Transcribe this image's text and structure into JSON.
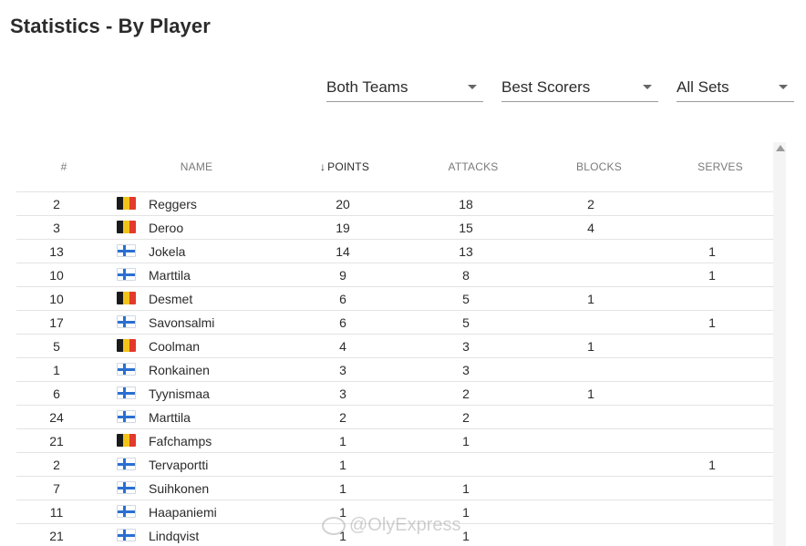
{
  "page": {
    "title": "Statistics - By Player"
  },
  "filters": {
    "teams": "Both Teams",
    "type": "Best Scorers",
    "sets": "All Sets"
  },
  "table": {
    "columns": {
      "num": "#",
      "name": "Name",
      "points": "POINTS",
      "attacks": "ATTACKS",
      "blocks": "BLOCKS",
      "serves": "SERVES"
    },
    "sort_indicator": "↓",
    "rows": [
      {
        "num": "2",
        "flag": "be",
        "name": "Reggers",
        "points": "20",
        "attacks": "18",
        "blocks": "2",
        "serves": ""
      },
      {
        "num": "3",
        "flag": "be",
        "name": "Deroo",
        "points": "19",
        "attacks": "15",
        "blocks": "4",
        "serves": ""
      },
      {
        "num": "13",
        "flag": "fi",
        "name": "Jokela",
        "points": "14",
        "attacks": "13",
        "blocks": "",
        "serves": "1"
      },
      {
        "num": "10",
        "flag": "fi",
        "name": "Marttila",
        "points": "9",
        "attacks": "8",
        "blocks": "",
        "serves": "1"
      },
      {
        "num": "10",
        "flag": "be",
        "name": "Desmet",
        "points": "6",
        "attacks": "5",
        "blocks": "1",
        "serves": ""
      },
      {
        "num": "17",
        "flag": "fi",
        "name": "Savonsalmi",
        "points": "6",
        "attacks": "5",
        "blocks": "",
        "serves": "1"
      },
      {
        "num": "5",
        "flag": "be",
        "name": "Coolman",
        "points": "4",
        "attacks": "3",
        "blocks": "1",
        "serves": ""
      },
      {
        "num": "1",
        "flag": "fi",
        "name": "Ronkainen",
        "points": "3",
        "attacks": "3",
        "blocks": "",
        "serves": ""
      },
      {
        "num": "6",
        "flag": "fi",
        "name": "Tyynismaa",
        "points": "3",
        "attacks": "2",
        "blocks": "1",
        "serves": ""
      },
      {
        "num": "24",
        "flag": "fi",
        "name": "Marttila",
        "points": "2",
        "attacks": "2",
        "blocks": "",
        "serves": ""
      },
      {
        "num": "21",
        "flag": "be",
        "name": "Fafchamps",
        "points": "1",
        "attacks": "1",
        "blocks": "",
        "serves": ""
      },
      {
        "num": "2",
        "flag": "fi",
        "name": "Tervaportti",
        "points": "1",
        "attacks": "",
        "blocks": "",
        "serves": "1"
      },
      {
        "num": "7",
        "flag": "fi",
        "name": "Suihkonen",
        "points": "1",
        "attacks": "1",
        "blocks": "",
        "serves": ""
      },
      {
        "num": "11",
        "flag": "fi",
        "name": "Haapaniemi",
        "points": "1",
        "attacks": "1",
        "blocks": "",
        "serves": ""
      },
      {
        "num": "21",
        "flag": "fi",
        "name": "Lindqvist",
        "points": "1",
        "attacks": "1",
        "blocks": "",
        "serves": ""
      }
    ]
  },
  "watermark": {
    "text": "@OlyExpress"
  },
  "icons": {
    "dropdown": "chevron-down-icon",
    "sort": "arrow-down-icon",
    "belgium": "belgium-flag-icon",
    "finland": "finland-flag-icon",
    "scroll": "scroll-up-icon"
  },
  "colors": {
    "belgium": [
      "#1a1a1a",
      "#f2c41a",
      "#e23a2c"
    ],
    "finland": [
      "#ffffff",
      "#2a6fd1"
    ]
  }
}
